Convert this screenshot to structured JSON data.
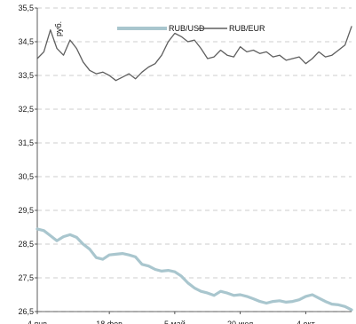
{
  "chart_data": {
    "type": "line",
    "title": "",
    "unit_label": "руб.",
    "xlabel": "",
    "ylabel": "",
    "ylim": [
      26.5,
      35.5
    ],
    "y_ticks": [
      "26,5",
      "27,5",
      "28,5",
      "29,5",
      "30,5",
      "31,5",
      "32,5",
      "33,5",
      "34,5",
      "35,5"
    ],
    "y_tick_values": [
      26.5,
      27.5,
      28.5,
      29.5,
      30.5,
      31.5,
      32.5,
      33.5,
      34.5,
      35.5
    ],
    "x_ticks": [
      "4 янв",
      "18 фев",
      "5 май",
      "20 июл",
      "4 окт"
    ],
    "x_tick_index": [
      0,
      11,
      21,
      31,
      41
    ],
    "grid": "horizontal dashed",
    "legend_position": "top-center",
    "colors": {
      "RUB/USD": "#a9c6ce",
      "RUB/EUR": "#5f5f5f"
    },
    "x_index_max": 48,
    "series": [
      {
        "name": "RUB/USD",
        "values": [
          28.95,
          28.9,
          28.75,
          28.6,
          28.72,
          28.78,
          28.7,
          28.5,
          28.35,
          28.1,
          28.05,
          28.18,
          28.2,
          28.22,
          28.18,
          28.12,
          27.9,
          27.85,
          27.75,
          27.7,
          27.72,
          27.68,
          27.55,
          27.35,
          27.2,
          27.1,
          27.05,
          26.98,
          27.1,
          27.05,
          26.98,
          27.0,
          26.95,
          26.88,
          26.8,
          26.75,
          26.8,
          26.82,
          26.78,
          26.8,
          26.85,
          26.95,
          27.0,
          26.9,
          26.8,
          26.72,
          26.7,
          26.65,
          26.55
        ]
      },
      {
        "name": "RUB/EUR",
        "values": [
          34.0,
          34.2,
          34.85,
          34.3,
          34.1,
          34.55,
          34.3,
          33.9,
          33.65,
          33.55,
          33.6,
          33.5,
          33.35,
          33.45,
          33.55,
          33.4,
          33.6,
          33.75,
          33.85,
          34.1,
          34.5,
          34.75,
          34.65,
          34.5,
          34.55,
          34.3,
          34.0,
          34.05,
          34.25,
          34.1,
          34.05,
          34.35,
          34.2,
          34.25,
          34.15,
          34.2,
          34.05,
          34.1,
          33.95,
          34.0,
          34.05,
          33.85,
          34.0,
          34.2,
          34.05,
          34.1,
          34.25,
          34.4,
          34.95
        ]
      }
    ]
  }
}
